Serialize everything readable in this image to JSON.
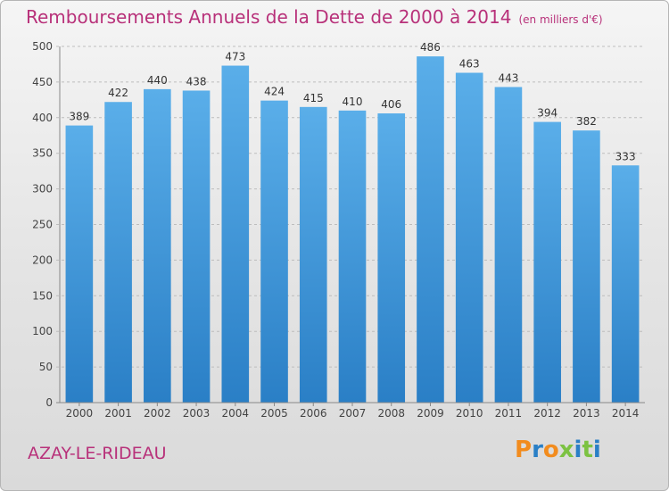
{
  "header": {
    "title": "Remboursements Annuels de la Dette de 2000 à 2014",
    "unit": "(en milliers d'€)"
  },
  "footer": {
    "city": "AZAY-LE-RIDEAU",
    "logo": "Proxiti"
  },
  "colors": {
    "title": "#b8317a",
    "bar_top": "#5aaee9",
    "bar_bottom": "#2a7fc6",
    "logo_letters": [
      "#f28c1e",
      "#2a7fc6",
      "#f28c1e",
      "#7cc242",
      "#2a7fc6",
      "#7cc242",
      "#2a7fc6"
    ]
  },
  "chart_data": {
    "type": "bar",
    "title": "Remboursements Annuels de la Dette de 2000 à 2014",
    "categories": [
      "2000",
      "2001",
      "2002",
      "2003",
      "2004",
      "2005",
      "2006",
      "2007",
      "2008",
      "2009",
      "2010",
      "2011",
      "2012",
      "2013",
      "2014"
    ],
    "values": [
      389,
      422,
      440,
      438,
      473,
      424,
      415,
      410,
      406,
      486,
      463,
      443,
      394,
      382,
      333
    ],
    "ylim": [
      0,
      500
    ],
    "yticks": [
      0,
      50,
      100,
      150,
      200,
      250,
      300,
      350,
      400,
      450,
      500
    ],
    "grid": true,
    "data_labels": true
  }
}
